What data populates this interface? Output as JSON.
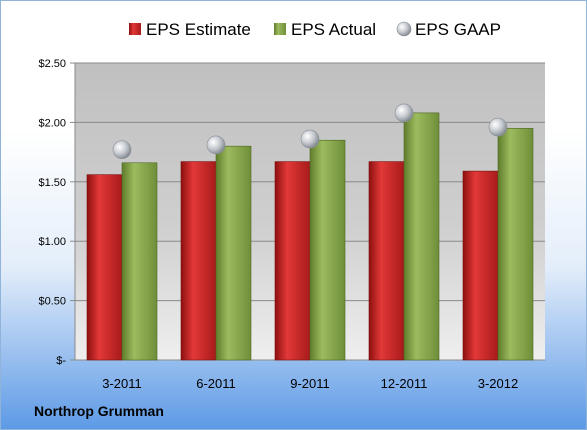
{
  "company": "Northrop Grumman",
  "colors": {
    "estimate": "#cc2424",
    "actual": "#8fae4f",
    "gaap": "#c8ccd2"
  },
  "chart_data": {
    "type": "bar",
    "categories": [
      "3-2011",
      "6-2011",
      "9-2011",
      "12-2011",
      "3-2012"
    ],
    "series": [
      {
        "name": "EPS Estimate",
        "type": "bar",
        "values": [
          1.56,
          1.67,
          1.67,
          1.67,
          1.59
        ]
      },
      {
        "name": "EPS Actual",
        "type": "bar",
        "values": [
          1.66,
          1.8,
          1.85,
          2.08,
          1.95
        ]
      },
      {
        "name": "EPS GAAP",
        "type": "scatter",
        "values": [
          1.77,
          1.81,
          1.86,
          2.08,
          1.96
        ]
      }
    ],
    "yticks": [
      {
        "value": 0,
        "label": "$-"
      },
      {
        "value": 0.5,
        "label": "$0.50"
      },
      {
        "value": 1.0,
        "label": "$1.00"
      },
      {
        "value": 1.5,
        "label": "$1.50"
      },
      {
        "value": 2.0,
        "label": "$2.00"
      },
      {
        "value": 2.5,
        "label": "$2.50"
      }
    ],
    "ylim": [
      0,
      2.5
    ],
    "grid": true,
    "legend": "top",
    "title": "",
    "xlabel": "",
    "ylabel": ""
  }
}
